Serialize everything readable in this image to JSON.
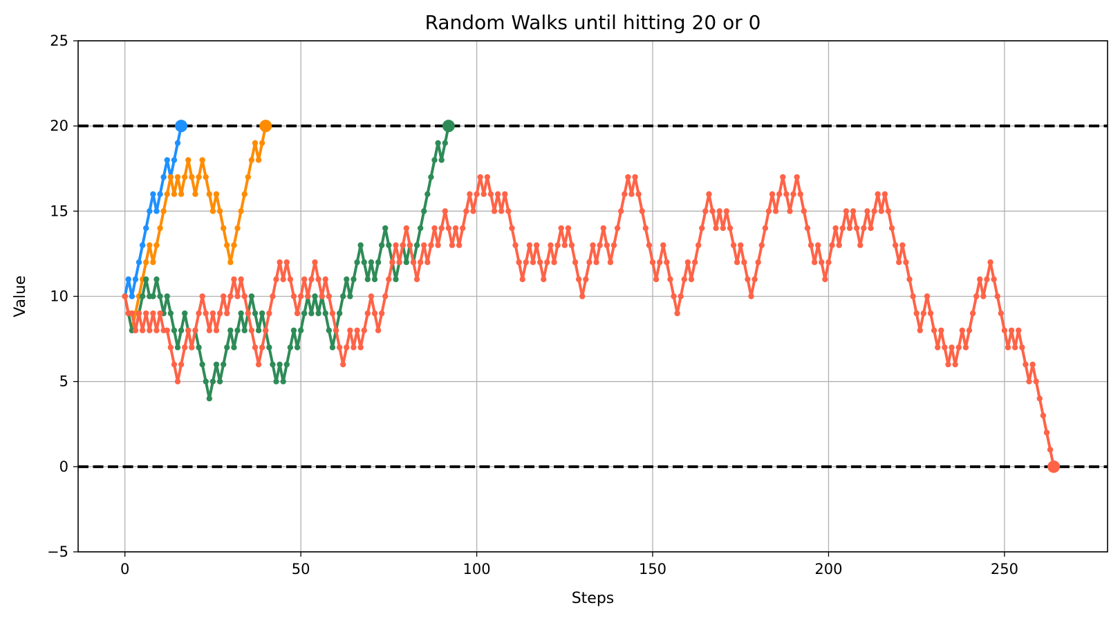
{
  "chart_data": {
    "type": "line",
    "title": "Random Walks until hitting 20 or 0",
    "xlabel": "Steps",
    "ylabel": "Value",
    "xlim": [
      -13.3,
      279.3
    ],
    "ylim": [
      -5,
      25
    ],
    "x_ticks": [
      "0",
      "50",
      "100",
      "150",
      "200",
      "250"
    ],
    "y_ticks": [
      "−5",
      "0",
      "5",
      "10",
      "15",
      "20",
      "25"
    ],
    "grid": true,
    "reference_lines": [
      {
        "y": 20,
        "style": "dashed",
        "color": "#000000"
      },
      {
        "y": 0,
        "style": "dashed",
        "color": "#000000"
      }
    ],
    "series": [
      {
        "color": "#1E90FF",
        "start": 0,
        "values": [
          10,
          11,
          10,
          11,
          12,
          13,
          14,
          15,
          16,
          15,
          16,
          17,
          18,
          17,
          18,
          19,
          20
        ]
      },
      {
        "color": "#FF8C00",
        "start": 0,
        "values": [
          10,
          9,
          8,
          9,
          10,
          11,
          12,
          13,
          12,
          13,
          14,
          15,
          16,
          17,
          16,
          17,
          16,
          17,
          18,
          17,
          16,
          17,
          18,
          17,
          16,
          15,
          16,
          15,
          14,
          13,
          12,
          13,
          14,
          15,
          16,
          17,
          18,
          19,
          18,
          19,
          20
        ]
      },
      {
        "color": "#2E8B57",
        "start": 0,
        "values": [
          10,
          9,
          8,
          8,
          9,
          10,
          11,
          10,
          10,
          11,
          10,
          9,
          10,
          9,
          8,
          7,
          8,
          9,
          8,
          7,
          8,
          7,
          6,
          5,
          4,
          5,
          6,
          5,
          6,
          7,
          8,
          7,
          8,
          9,
          8,
          9,
          10,
          9,
          8,
          9,
          8,
          7,
          6,
          5,
          6,
          5,
          6,
          7,
          8,
          7,
          8,
          9,
          10,
          9,
          10,
          9,
          10,
          9,
          8,
          7,
          8,
          9,
          10,
          11,
          10,
          11,
          12,
          13,
          12,
          11,
          12,
          11,
          12,
          13,
          14,
          13,
          12,
          11,
          12,
          13,
          12,
          13,
          12,
          13,
          14,
          15,
          16,
          17,
          18,
          19,
          18,
          19,
          20
        ]
      },
      {
        "color": "#FF6347",
        "start": 0,
        "values": [
          10,
          9,
          9,
          8,
          9,
          8,
          9,
          8,
          9,
          8,
          9,
          8,
          8,
          7,
          6,
          5,
          6,
          7,
          8,
          7,
          8,
          9,
          10,
          9,
          8,
          9,
          8,
          9,
          10,
          9,
          10,
          11,
          10,
          11,
          10,
          9,
          8,
          7,
          6,
          7,
          8,
          9,
          10,
          11,
          12,
          11,
          12,
          11,
          10,
          9,
          10,
          11,
          10,
          11,
          12,
          11,
          10,
          11,
          10,
          9,
          8,
          7,
          6,
          7,
          8,
          7,
          8,
          7,
          8,
          9,
          10,
          9,
          8,
          9,
          10,
          11,
          12,
          13,
          12,
          13,
          14,
          13,
          12,
          11,
          12,
          13,
          12,
          13,
          14,
          13,
          14,
          15,
          14,
          13,
          14,
          13,
          14,
          15,
          16,
          15,
          16,
          17,
          16,
          17,
          16,
          15,
          16,
          15,
          16,
          15,
          14,
          13,
          12,
          11,
          12,
          13,
          12,
          13,
          12,
          11,
          12,
          13,
          12,
          13,
          14,
          13,
          14,
          13,
          12,
          11,
          10,
          11,
          12,
          13,
          12,
          13,
          14,
          13,
          12,
          13,
          14,
          15,
          16,
          17,
          16,
          17,
          16,
          15,
          14,
          13,
          12,
          11,
          12,
          13,
          12,
          11,
          10,
          9,
          10,
          11,
          12,
          11,
          12,
          13,
          14,
          15,
          16,
          15,
          14,
          15,
          14,
          15,
          14,
          13,
          12,
          13,
          12,
          11,
          10,
          11,
          12,
          13,
          14,
          15,
          16,
          15,
          16,
          17,
          16,
          15,
          16,
          17,
          16,
          15,
          14,
          13,
          12,
          13,
          12,
          11,
          12,
          13,
          14,
          13,
          14,
          15,
          14,
          15,
          14,
          13,
          14,
          15,
          14,
          15,
          16,
          15,
          16,
          15,
          14,
          13,
          12,
          13,
          12,
          11,
          10,
          9,
          8,
          9,
          10,
          9,
          8,
          7,
          8,
          7,
          6,
          7,
          6,
          7,
          8,
          7,
          8,
          9,
          10,
          11,
          10,
          11,
          12,
          11,
          10,
          9,
          8,
          7,
          8,
          7,
          8,
          7,
          6,
          5,
          6,
          5,
          4,
          3,
          2,
          1,
          0
        ]
      }
    ]
  }
}
